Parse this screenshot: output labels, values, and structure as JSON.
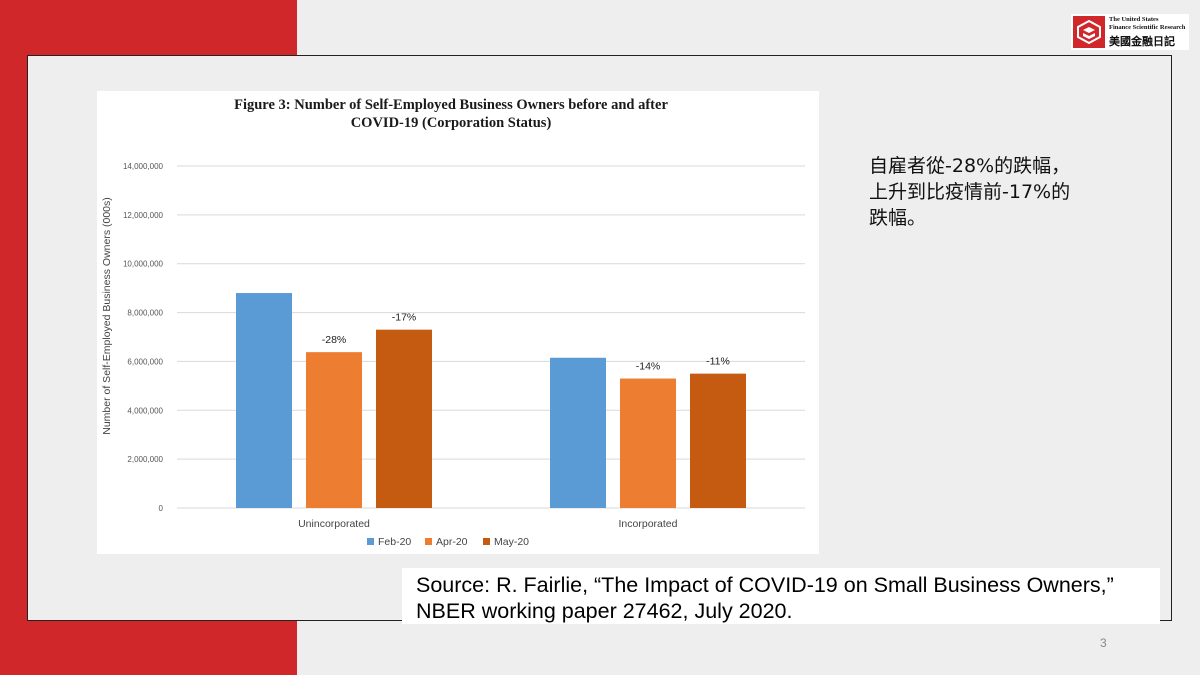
{
  "colors": {
    "accent_red": "#d0272b",
    "feb": "#5b9bd5",
    "apr": "#ed7d31",
    "may": "#c55a11"
  },
  "logo": {
    "icon": "company-logo-icon",
    "line1": "The United States",
    "line2": "Finance Scientific Research",
    "chinese": "美國金融日記"
  },
  "chart_data": {
    "type": "bar",
    "title_line1": "Figure 3: Number of Self-Employed Business Owners before and after",
    "title_line2": "COVID-19 (Corporation Status)",
    "ylabel": "Number of Self-Employed Business Owners (000s)",
    "xlabel": "",
    "categories": [
      "Unincorporated",
      "Incorporated"
    ],
    "series": [
      {
        "name": "Feb-20",
        "color": "#5b9bd5",
        "values": [
          8800000,
          6150000
        ],
        "labels": [
          "",
          ""
        ]
      },
      {
        "name": "Apr-20",
        "color": "#ed7d31",
        "values": [
          6380000,
          5300000
        ],
        "labels": [
          "-28%",
          "-14%"
        ]
      },
      {
        "name": "May-20",
        "color": "#c55a11",
        "values": [
          7300000,
          5500000
        ],
        "labels": [
          "-17%",
          "-11%"
        ]
      }
    ],
    "ylim": [
      0,
      14000000
    ],
    "yticks": [
      {
        "value": 0,
        "label": "0"
      },
      {
        "value": 2000000,
        "label": "2,000,000"
      },
      {
        "value": 4000000,
        "label": "4,000,000"
      },
      {
        "value": 6000000,
        "label": "6,000,000"
      },
      {
        "value": 8000000,
        "label": "8,000,000"
      },
      {
        "value": 10000000,
        "label": "10,000,000"
      },
      {
        "value": 12000000,
        "label": "12,000,000"
      },
      {
        "value": 14000000,
        "label": "14,000,000"
      }
    ],
    "grid": true,
    "legend_placement": "bottom"
  },
  "note": {
    "line1": "自雇者從-28%的跌幅，",
    "line2": "上升到比疫情前-17%的",
    "line3": "跌幅。"
  },
  "source": {
    "line1": "Source: R. Fairlie, “The Impact of COVID-19 on Small Business Owners,”",
    "line2": "NBER working paper 27462, July 2020."
  },
  "page_number": "3"
}
